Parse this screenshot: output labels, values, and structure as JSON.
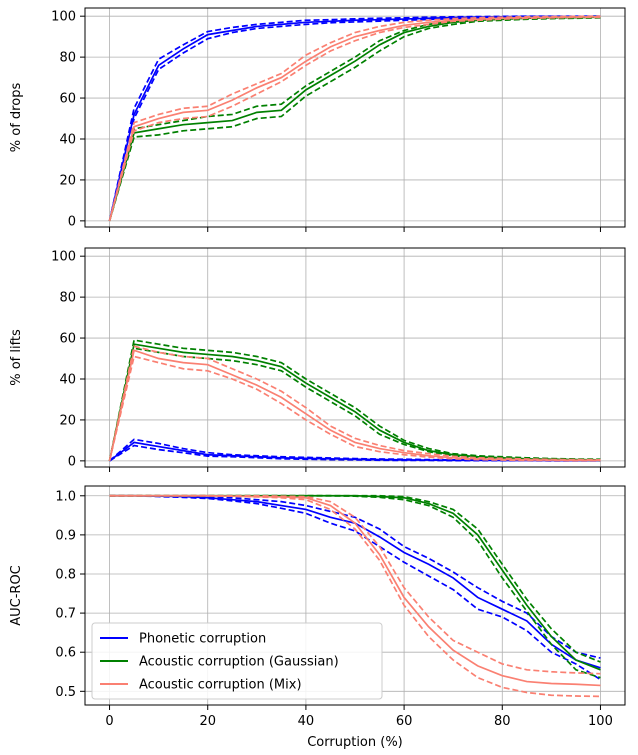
{
  "colors": {
    "phonetic": "#0000ff",
    "gaussian": "#008000",
    "mix": "#fa8072",
    "grid": "#b0b0b0",
    "axis": "#000000"
  },
  "legend": {
    "placement": "lower-left",
    "entries": [
      "Phonetic corruption",
      "Acoustic corruption (Gaussian)",
      "Acoustic corruption (Mix)"
    ]
  },
  "chart_data": [
    {
      "type": "line",
      "ylabel": "% of drops",
      "xlabel": "",
      "xlim": [
        -5,
        105
      ],
      "ylim": [
        -3,
        104
      ],
      "xticks": [
        "0",
        "20",
        "40",
        "60",
        "80",
        "100"
      ],
      "xtick_values": [
        0,
        20,
        40,
        60,
        80,
        100
      ],
      "yticks": [
        "0",
        "20",
        "40",
        "60",
        "80",
        "100"
      ],
      "ytick_values": [
        0,
        20,
        40,
        60,
        80,
        100
      ],
      "grid": true,
      "x": [
        0,
        5,
        10,
        15,
        20,
        25,
        30,
        35,
        40,
        45,
        50,
        55,
        60,
        65,
        70,
        75,
        80,
        85,
        90,
        95,
        100
      ],
      "series": [
        {
          "name": "Phonetic corruption",
          "values": [
            0,
            52,
            76,
            84,
            91,
            93,
            95,
            96,
            97,
            97.5,
            98,
            98.3,
            98.6,
            99,
            99.3,
            99.5,
            99.7,
            99.8,
            99.9,
            99.9,
            100
          ],
          "lower": [
            0,
            50,
            74,
            82,
            89,
            92,
            94,
            95,
            96,
            96.8,
            97.2,
            97.6,
            98,
            98.4,
            98.8,
            99,
            99.3,
            99.5,
            99.6,
            99.7,
            99.8
          ],
          "upper": [
            0,
            55,
            79,
            86,
            92.5,
            94.5,
            96,
            97,
            98,
            98.3,
            98.7,
            99,
            99.2,
            99.5,
            99.7,
            99.8,
            99.9,
            100,
            100,
            100,
            100
          ]
        },
        {
          "name": "Acoustic corruption (Gaussian)",
          "values": [
            0,
            43,
            45,
            47,
            48,
            49,
            53,
            54,
            64,
            71,
            78,
            86,
            92,
            95,
            97,
            98,
            98.5,
            99,
            99.2,
            99.3,
            99.5
          ],
          "lower": [
            0,
            41,
            42,
            44,
            45,
            46,
            50,
            51,
            61,
            68,
            75,
            83,
            90,
            94,
            96,
            97.5,
            98,
            98.5,
            98.8,
            99,
            99.2
          ],
          "upper": [
            0,
            45,
            47,
            49,
            51,
            52,
            56,
            57,
            66,
            73,
            80,
            88,
            93,
            96,
            97.5,
            98.5,
            99,
            99.3,
            99.5,
            99.6,
            99.8
          ]
        },
        {
          "name": "Acoustic corruption (Mix)",
          "values": [
            0,
            46,
            50,
            53,
            54,
            59,
            65,
            70,
            78,
            85,
            90,
            93,
            95.5,
            97,
            98,
            98.5,
            99,
            99.3,
            99.5,
            99.6,
            99.7
          ],
          "lower": [
            0,
            44,
            48,
            50,
            51,
            56,
            62,
            68,
            76,
            83,
            88,
            92,
            94.5,
            96,
            97.5,
            98,
            98.6,
            99,
            99.2,
            99.4,
            99.5
          ],
          "upper": [
            0,
            48,
            52,
            55,
            56,
            62,
            67,
            72,
            81,
            87,
            92,
            95,
            97,
            98,
            98.8,
            99.2,
            99.5,
            99.7,
            99.8,
            99.9,
            100
          ]
        }
      ]
    },
    {
      "type": "line",
      "ylabel": "% of  lifts",
      "xlabel": "",
      "xlim": [
        -5,
        105
      ],
      "ylim": [
        -3,
        104
      ],
      "xticks": [
        "0",
        "20",
        "40",
        "60",
        "80",
        "100"
      ],
      "xtick_values": [
        0,
        20,
        40,
        60,
        80,
        100
      ],
      "yticks": [
        "0",
        "20",
        "40",
        "60",
        "80",
        "100"
      ],
      "ytick_values": [
        0,
        20,
        40,
        60,
        80,
        100
      ],
      "grid": true,
      "x": [
        0,
        5,
        10,
        15,
        20,
        25,
        30,
        35,
        40,
        45,
        50,
        55,
        60,
        65,
        70,
        75,
        80,
        85,
        90,
        95,
        100
      ],
      "series": [
        {
          "name": "Phonetic corruption",
          "values": [
            0,
            9,
            7,
            5,
            3,
            2.5,
            2,
            1.5,
            1.2,
            1,
            0.8,
            0.6,
            0.5,
            0.4,
            0.3,
            0.3,
            0.2,
            0.2,
            0.2,
            0.1,
            0.1
          ],
          "lower": [
            0,
            7.5,
            5.5,
            4,
            2.3,
            2,
            1.5,
            1,
            0.8,
            0.6,
            0.5,
            0.3,
            0.2,
            0.2,
            0.1,
            0.1,
            0.1,
            0.1,
            0,
            0,
            0
          ],
          "upper": [
            0,
            10.5,
            8.5,
            6,
            4,
            3,
            2.5,
            2,
            1.7,
            1.4,
            1.1,
            0.9,
            0.8,
            0.6,
            0.5,
            0.4,
            0.3,
            0.3,
            0.3,
            0.2,
            0.2
          ]
        },
        {
          "name": "Acoustic corruption (Gaussian)",
          "values": [
            0,
            57,
            55,
            53,
            52,
            51,
            49,
            46,
            38,
            31,
            24,
            15,
            9,
            5,
            3,
            2,
            1.5,
            1,
            0.8,
            0.6,
            0.5
          ],
          "lower": [
            0,
            55,
            53,
            51,
            50,
            49,
            47,
            44,
            36,
            29,
            22,
            13,
            8,
            4.5,
            2.5,
            1.5,
            1,
            0.7,
            0.5,
            0.3,
            0.2
          ],
          "upper": [
            0,
            59,
            57,
            55,
            54,
            53,
            51,
            48,
            40,
            33,
            26,
            17,
            10,
            6,
            3.5,
            2.5,
            2,
            1.5,
            1.1,
            0.9,
            0.8
          ]
        },
        {
          "name": "Acoustic corruption (Mix)",
          "values": [
            0,
            54,
            50,
            48,
            47,
            42,
            37,
            31,
            23,
            15,
            9,
            6,
            4,
            2.5,
            1.5,
            1,
            0.7,
            0.5,
            0.4,
            0.3,
            0.3
          ],
          "lower": [
            0,
            51,
            48,
            45,
            44,
            40,
            35,
            28,
            20,
            13,
            7,
            4.5,
            3,
            1.8,
            1,
            0.6,
            0.4,
            0.2,
            0.2,
            0.1,
            0.1
          ],
          "upper": [
            0,
            56,
            53,
            51,
            50,
            45,
            40,
            34,
            26,
            17,
            11,
            7.5,
            5,
            3.5,
            2.2,
            1.5,
            1.2,
            0.9,
            0.7,
            0.6,
            0.5
          ]
        }
      ]
    },
    {
      "type": "line",
      "ylabel": "AUC-ROC",
      "xlabel": "Corruption (%)",
      "xlim": [
        -5,
        105
      ],
      "ylim": [
        0.465,
        1.025
      ],
      "xticks": [
        "0",
        "20",
        "40",
        "60",
        "80",
        "100"
      ],
      "xtick_values": [
        0,
        20,
        40,
        60,
        80,
        100
      ],
      "yticks": [
        "0.5",
        "0.6",
        "0.7",
        "0.8",
        "0.9",
        "1.0"
      ],
      "ytick_values": [
        0.5,
        0.6,
        0.7,
        0.8,
        0.9,
        1.0
      ],
      "grid": true,
      "x": [
        0,
        5,
        10,
        15,
        20,
        25,
        30,
        35,
        40,
        45,
        50,
        55,
        60,
        65,
        70,
        75,
        80,
        85,
        90,
        95,
        100
      ],
      "series": [
        {
          "name": "Phonetic corruption",
          "values": [
            1.0,
            1.0,
            0.999,
            0.998,
            0.995,
            0.99,
            0.985,
            0.975,
            0.965,
            0.945,
            0.93,
            0.895,
            0.855,
            0.825,
            0.79,
            0.74,
            0.71,
            0.68,
            0.62,
            0.58,
            0.56
          ],
          "lower": [
            1.0,
            1.0,
            0.998,
            0.996,
            0.993,
            0.987,
            0.98,
            0.968,
            0.955,
            0.93,
            0.91,
            0.87,
            0.83,
            0.795,
            0.76,
            0.71,
            0.69,
            0.655,
            0.6,
            0.57,
            0.53
          ],
          "upper": [
            1.0,
            1.0,
            1.0,
            0.999,
            0.998,
            0.995,
            0.99,
            0.985,
            0.975,
            0.96,
            0.945,
            0.915,
            0.87,
            0.84,
            0.805,
            0.765,
            0.73,
            0.7,
            0.64,
            0.6,
            0.585
          ]
        },
        {
          "name": "Acoustic corruption (Gaussian)",
          "values": [
            1.0,
            1.0,
            1.0,
            1.0,
            1.0,
            1.0,
            1.0,
            1.0,
            1.0,
            1.0,
            1.0,
            0.998,
            0.995,
            0.98,
            0.955,
            0.9,
            0.81,
            0.72,
            0.64,
            0.58,
            0.555
          ],
          "lower": [
            1.0,
            1.0,
            1.0,
            1.0,
            1.0,
            1.0,
            1.0,
            1.0,
            1.0,
            1.0,
            0.999,
            0.996,
            0.99,
            0.975,
            0.945,
            0.885,
            0.79,
            0.705,
            0.62,
            0.555,
            0.535
          ],
          "upper": [
            1.0,
            1.0,
            1.0,
            1.0,
            1.0,
            1.0,
            1.0,
            1.0,
            1.0,
            1.0,
            1.0,
            1.0,
            0.998,
            0.985,
            0.965,
            0.915,
            0.825,
            0.735,
            0.66,
            0.6,
            0.575
          ]
        },
        {
          "name": "Acoustic corruption (Mix)",
          "values": [
            1.0,
            1.0,
            1.0,
            1.0,
            1.0,
            0.999,
            0.998,
            0.997,
            0.995,
            0.975,
            0.93,
            0.85,
            0.74,
            0.665,
            0.605,
            0.565,
            0.54,
            0.525,
            0.52,
            0.518,
            0.515
          ],
          "lower": [
            1.0,
            1.0,
            1.0,
            1.0,
            1.0,
            0.999,
            0.997,
            0.995,
            0.99,
            0.965,
            0.915,
            0.835,
            0.72,
            0.64,
            0.58,
            0.535,
            0.51,
            0.497,
            0.49,
            0.488,
            0.487
          ],
          "upper": [
            1.0,
            1.0,
            1.0,
            1.0,
            1.0,
            1.0,
            1.0,
            0.999,
            0.998,
            0.985,
            0.945,
            0.87,
            0.765,
            0.69,
            0.63,
            0.6,
            0.57,
            0.555,
            0.55,
            0.547,
            0.545
          ]
        }
      ]
    }
  ]
}
